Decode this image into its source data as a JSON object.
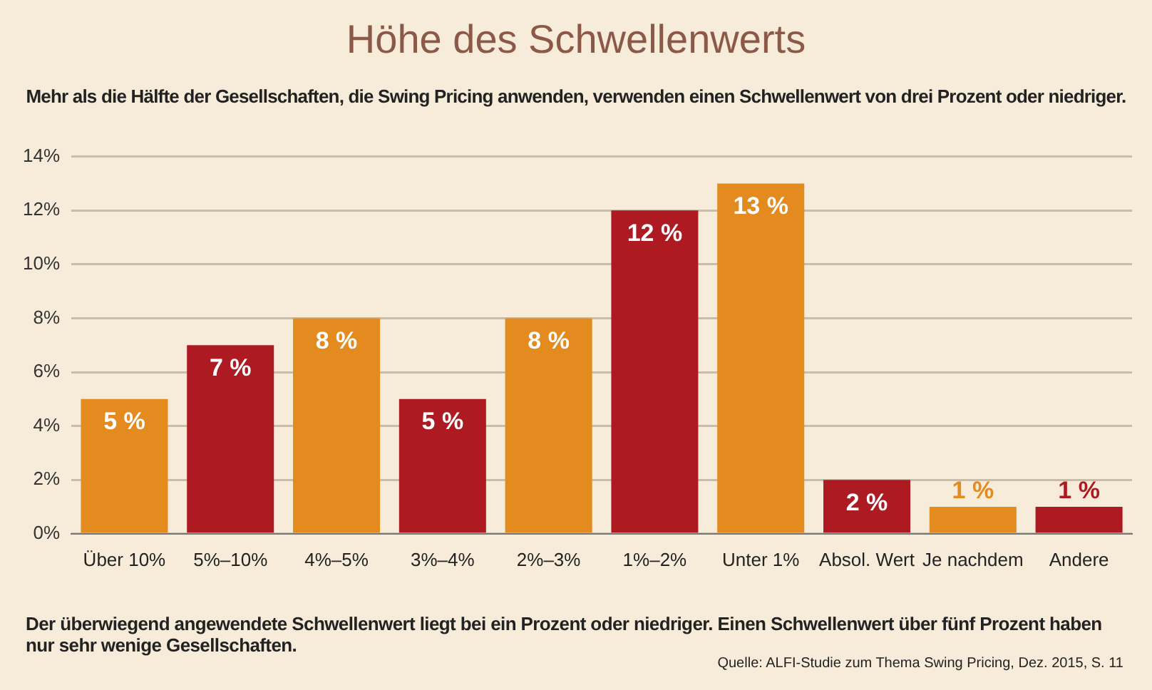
{
  "chart_data": {
    "type": "bar",
    "title": "Höhe des Schwellenwerts",
    "subtitle": "Mehr als die Hälfte der Gesellschaften, die Swing Pricing anwenden, verwenden einen Schwellenwert von drei Prozent oder niedriger.",
    "categories": [
      "Über 10%",
      "5%–10%",
      "4%–5%",
      "3%–4%",
      "2%–3%",
      "1%–2%",
      "Unter 1%",
      "Absol. Wert",
      "Je nachdem",
      "Andere"
    ],
    "values": [
      5,
      7,
      8,
      5,
      8,
      12,
      13,
      2,
      1,
      1
    ],
    "colors": [
      "#e38b1f",
      "#ad1a22",
      "#e38b1f",
      "#ad1a22",
      "#e38b1f",
      "#ad1a22",
      "#e38b1f",
      "#ad1a22",
      "#e38b1f",
      "#ad1a22"
    ],
    "value_labels": [
      "5 %",
      "7 %",
      "8 %",
      "5 %",
      "8 %",
      "12 %",
      "13 %",
      "2 %",
      "1 %",
      "1 %"
    ],
    "ylim": [
      0,
      14
    ],
    "yticks": [
      {
        "value": 0,
        "label": "0%"
      },
      {
        "value": 2,
        "label": "2%"
      },
      {
        "value": 4,
        "label": "4%"
      },
      {
        "value": 6,
        "label": "6%"
      },
      {
        "value": 8,
        "label": "8%"
      },
      {
        "value": 10,
        "label": "10%"
      },
      {
        "value": 12,
        "label": "12%"
      },
      {
        "value": 14,
        "label": "14%"
      }
    ],
    "grid": "y",
    "legend": false,
    "annotations": [
      "Der überwiegend angewendete Schwellenwert liegt bei ein Prozent oder niedriger. Einen Schwellenwert über fünf Prozent haben nur sehr wenige Gesellschaften.",
      "Quelle: ALFI-Studie zum Thema Swing Pricing, Dez. 2015, S. 11"
    ]
  }
}
